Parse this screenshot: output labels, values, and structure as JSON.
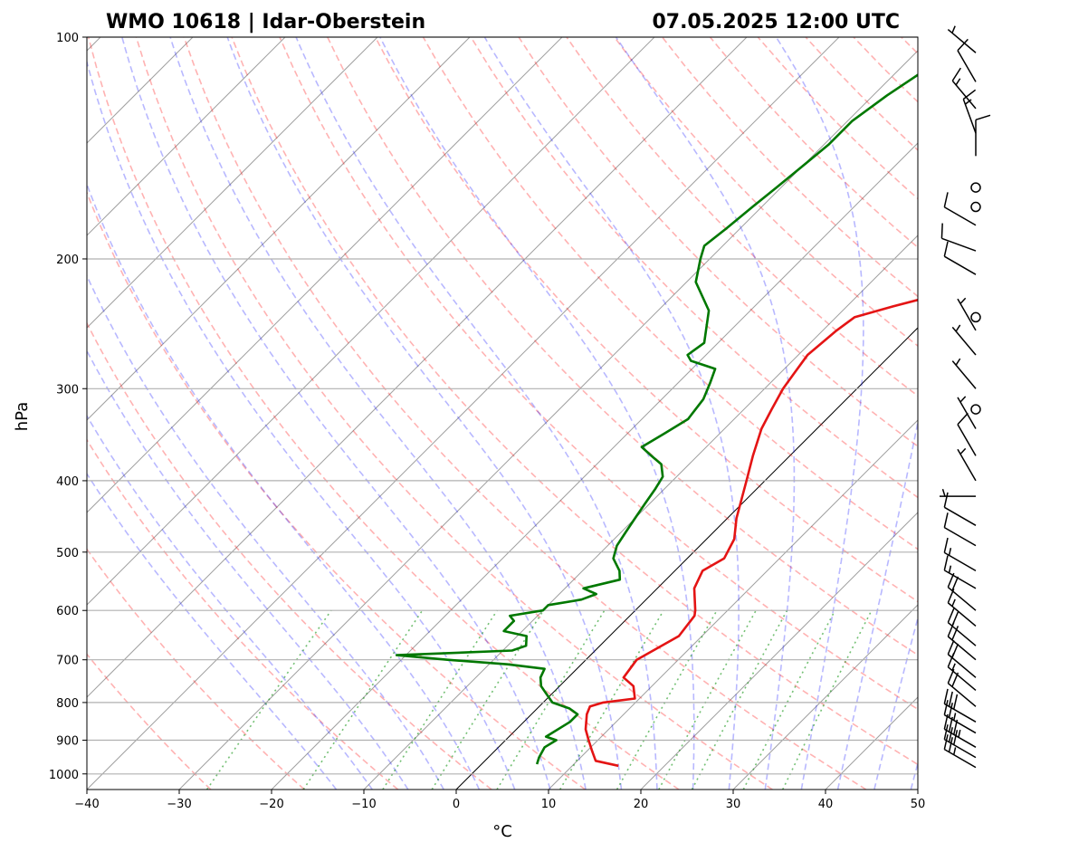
{
  "chart_data": {
    "type": "line",
    "title_left": "WMO 10618 | Idar-Oberstein",
    "title_right": "07.05.2025 12:00 UTC",
    "xlabel": "°C",
    "ylabel": "hPa",
    "xlim": [
      -40,
      50
    ],
    "ylim": [
      1000,
      100
    ],
    "y_scale": "log",
    "x_ticks": [
      -40,
      -30,
      -20,
      -10,
      0,
      10,
      20,
      30,
      40,
      50
    ],
    "x_tick_labels": [
      "−40",
      "−30",
      "−20",
      "−10",
      "0",
      "10",
      "20",
      "30",
      "40",
      "50"
    ],
    "y_ticks": [
      1000,
      900,
      800,
      700,
      600,
      500,
      400,
      300,
      200,
      100
    ],
    "y_tick_labels": [
      "1000",
      "900",
      "800",
      "700",
      "600",
      "500",
      "400",
      "300",
      "200",
      "100"
    ],
    "grid": true,
    "background_lines": [
      "dry adiabats (red dashed)",
      "moist adiabats (blue dashed)",
      "mixing ratio lines (green dotted)",
      "isotherms (grey)",
      "0 °C isotherm (black)"
    ],
    "series": [
      {
        "role": "temperature",
        "color": "#e41414",
        "points": [
          [
            15.0,
            975
          ],
          [
            12.0,
            960
          ],
          [
            10.5,
            930
          ],
          [
            9.0,
            900
          ],
          [
            7.5,
            870
          ],
          [
            6.0,
            830
          ],
          [
            5.5,
            810
          ],
          [
            6.5,
            800
          ],
          [
            9.5,
            790
          ],
          [
            8.0,
            760
          ],
          [
            6.0,
            740
          ],
          [
            5.5,
            700
          ],
          [
            7.5,
            650
          ],
          [
            7.0,
            610
          ],
          [
            6.5,
            600
          ],
          [
            4.0,
            560
          ],
          [
            3.0,
            530
          ],
          [
            4.0,
            510
          ],
          [
            3.0,
            480
          ],
          [
            1.0,
            450
          ],
          [
            -2.0,
            400
          ],
          [
            -4.0,
            370
          ],
          [
            -6.0,
            340
          ],
          [
            -7.0,
            320
          ],
          [
            -8.0,
            300
          ],
          [
            -8.5,
            285
          ],
          [
            -9.0,
            270
          ],
          [
            -8.5,
            250
          ],
          [
            -8.0,
            240
          ],
          [
            -5.0,
            232
          ],
          [
            -2.0,
            225
          ],
          [
            -0.5,
            220
          ],
          [
            0.5,
            210
          ],
          [
            3.0,
            200
          ],
          [
            5.0,
            190
          ],
          [
            6.0,
            182
          ],
          [
            8.0,
            175
          ],
          [
            8.5,
            165
          ],
          [
            9.5,
            155
          ],
          [
            11.5,
            145
          ],
          [
            13.0,
            137
          ],
          [
            14.0,
            127
          ],
          [
            16.5,
            120
          ],
          [
            18.5,
            113
          ],
          [
            20.0,
            108
          ],
          [
            22.5,
            103
          ],
          [
            23.5,
            100
          ]
        ]
      },
      {
        "role": "dewpoint",
        "color": "#007800",
        "points": [
          [
            6.0,
            970
          ],
          [
            5.5,
            950
          ],
          [
            5.0,
            920
          ],
          [
            5.5,
            900
          ],
          [
            4.0,
            890
          ],
          [
            5.0,
            850
          ],
          [
            5.0,
            830
          ],
          [
            3.5,
            815
          ],
          [
            1.0,
            800
          ],
          [
            -0.5,
            780
          ],
          [
            -2.0,
            760
          ],
          [
            -3.0,
            740
          ],
          [
            -3.5,
            720
          ],
          [
            -8.0,
            710
          ],
          [
            -15.0,
            700
          ],
          [
            -21.0,
            690
          ],
          [
            -9.0,
            680
          ],
          [
            -8.0,
            670
          ],
          [
            -9.0,
            650
          ],
          [
            -12.0,
            640
          ],
          [
            -12.0,
            620
          ],
          [
            -13.0,
            610
          ],
          [
            -10.0,
            600
          ],
          [
            -10.0,
            590
          ],
          [
            -7.0,
            580
          ],
          [
            -6.0,
            570
          ],
          [
            -8.0,
            560
          ],
          [
            -5.0,
            545
          ],
          [
            -6.0,
            530
          ],
          [
            -8.0,
            510
          ],
          [
            -9.0,
            490
          ],
          [
            -9.5,
            470
          ],
          [
            -10.0,
            450
          ],
          [
            -10.5,
            430
          ],
          [
            -11.0,
            410
          ],
          [
            -11.5,
            395
          ],
          [
            -13.0,
            380
          ],
          [
            -15.0,
            370
          ],
          [
            -17.0,
            360
          ],
          [
            -16.0,
            345
          ],
          [
            -15.0,
            330
          ],
          [
            -15.5,
            310
          ],
          [
            -16.5,
            295
          ],
          [
            -17.5,
            282
          ],
          [
            -21.0,
            275
          ],
          [
            -22.0,
            270
          ],
          [
            -21.5,
            260
          ],
          [
            -24.5,
            235
          ],
          [
            -29.0,
            215
          ],
          [
            -31.0,
            200
          ],
          [
            -32.0,
            192
          ],
          [
            -31.5,
            182
          ],
          [
            -31.0,
            170
          ],
          [
            -30.5,
            160
          ],
          [
            -30.0,
            150
          ],
          [
            -29.5,
            140
          ],
          [
            -29.5,
            130
          ],
          [
            -28.5,
            120
          ],
          [
            -27.0,
            110
          ],
          [
            -26.0,
            105
          ],
          [
            -25.0,
            100
          ]
        ]
      }
    ],
    "wind_barbs": [
      {
        "p": 980,
        "dir": 300,
        "speed": 25
      },
      {
        "p": 950,
        "dir": 300,
        "speed": 30
      },
      {
        "p": 920,
        "dir": 300,
        "speed": 35
      },
      {
        "p": 880,
        "dir": 300,
        "speed": 25
      },
      {
        "p": 850,
        "dir": 300,
        "speed": 30
      },
      {
        "p": 810,
        "dir": 310,
        "speed": 20
      },
      {
        "p": 770,
        "dir": 310,
        "speed": 15
      },
      {
        "p": 740,
        "dir": 310,
        "speed": 20
      },
      {
        "p": 700,
        "dir": 310,
        "speed": 20
      },
      {
        "p": 670,
        "dir": 310,
        "speed": 20
      },
      {
        "p": 630,
        "dir": 310,
        "speed": 15
      },
      {
        "p": 600,
        "dir": 310,
        "speed": 20
      },
      {
        "p": 560,
        "dir": 300,
        "speed": 15
      },
      {
        "p": 530,
        "dir": 300,
        "speed": 15
      },
      {
        "p": 490,
        "dir": 300,
        "speed": 10
      },
      {
        "p": 460,
        "dir": 300,
        "speed": 10
      },
      {
        "p": 420,
        "dir": 270,
        "speed": 5
      },
      {
        "p": 400,
        "dir": 330,
        "speed": 5
      },
      {
        "p": 370,
        "dir": 330,
        "speed": 10
      },
      {
        "p": 340,
        "dir": 330,
        "speed": 5
      },
      {
        "p": 320,
        "dir": 0,
        "speed": 0
      },
      {
        "p": 300,
        "dir": 320,
        "speed": 5
      },
      {
        "p": 270,
        "dir": 320,
        "speed": 5
      },
      {
        "p": 250,
        "dir": 330,
        "speed": 5
      },
      {
        "p": 240,
        "dir": 0,
        "speed": 0
      },
      {
        "p": 210,
        "dir": 300,
        "speed": 10
      },
      {
        "p": 195,
        "dir": 290,
        "speed": 10
      },
      {
        "p": 180,
        "dir": 300,
        "speed": 10
      },
      {
        "p": 170,
        "dir": 0,
        "speed": 0
      },
      {
        "p": 160,
        "dir": 0,
        "speed": 0
      },
      {
        "p": 145,
        "dir": 0,
        "speed": 10
      },
      {
        "p": 135,
        "dir": 340,
        "speed": 15
      },
      {
        "p": 125,
        "dir": 320,
        "speed": 15
      },
      {
        "p": 115,
        "dir": 330,
        "speed": 10
      },
      {
        "p": 105,
        "dir": 310,
        "speed": 5
      }
    ]
  }
}
